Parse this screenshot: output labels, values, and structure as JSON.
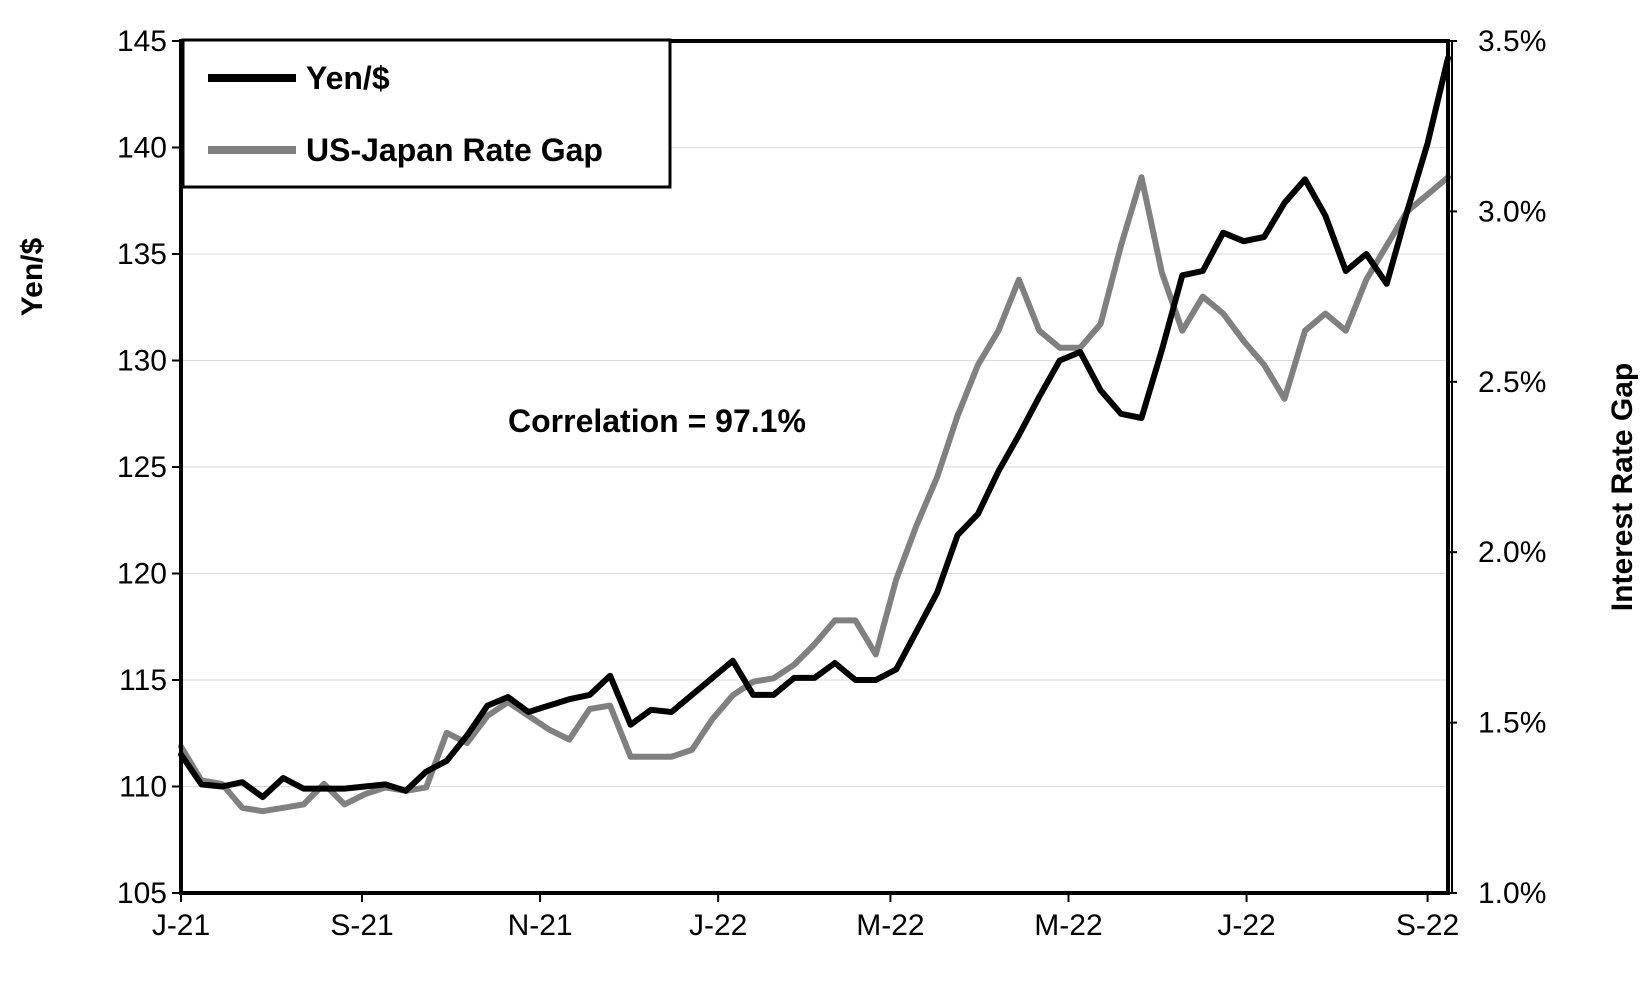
{
  "chart_data": {
    "type": "line",
    "title": "",
    "annotation": "Correlation = 97.1%",
    "xlabel": "",
    "ylabel": "Yen/$",
    "y2label": "Interest Rate Gap",
    "x_ticks": [
      "J-21",
      "S-21",
      "N-21",
      "J-22",
      "M-22",
      "M-22",
      "J-22",
      "S-22"
    ],
    "x_tick_dates": [
      "2021-07-01",
      "2021-09-01",
      "2021-11-01",
      "2022-01-01",
      "2022-03-01",
      "2022-05-01",
      "2022-07-01",
      "2022-09-01"
    ],
    "x_range": [
      "2021-07-01",
      "2022-09-08"
    ],
    "ylim": [
      105,
      145
    ],
    "y_ticks": [
      "105",
      "110",
      "115",
      "120",
      "125",
      "130",
      "135",
      "140",
      "145"
    ],
    "y2lim": [
      1.0,
      3.5
    ],
    "y2_ticks": [
      "1.0%",
      "1.5%",
      "2.0%",
      "2.5%",
      "3.0%",
      "3.5%"
    ],
    "grid": "horizontal",
    "legend": "top-left",
    "x": [
      "2021-07-01",
      "2021-07-08",
      "2021-07-15",
      "2021-07-22",
      "2021-07-29",
      "2021-08-05",
      "2021-08-12",
      "2021-08-19",
      "2021-08-26",
      "2021-09-02",
      "2021-09-09",
      "2021-09-16",
      "2021-09-23",
      "2021-09-30",
      "2021-10-07",
      "2021-10-14",
      "2021-10-21",
      "2021-10-28",
      "2021-11-04",
      "2021-11-11",
      "2021-11-18",
      "2021-11-25",
      "2021-12-02",
      "2021-12-09",
      "2021-12-16",
      "2021-12-23",
      "2021-12-30",
      "2022-01-06",
      "2022-01-13",
      "2022-01-20",
      "2022-01-27",
      "2022-02-03",
      "2022-02-10",
      "2022-02-17",
      "2022-02-24",
      "2022-03-03",
      "2022-03-10",
      "2022-03-17",
      "2022-03-24",
      "2022-03-31",
      "2022-04-07",
      "2022-04-14",
      "2022-04-21",
      "2022-04-28",
      "2022-05-05",
      "2022-05-12",
      "2022-05-19",
      "2022-05-26",
      "2022-06-02",
      "2022-06-09",
      "2022-06-16",
      "2022-06-23",
      "2022-06-30",
      "2022-07-07",
      "2022-07-14",
      "2022-07-21",
      "2022-07-28",
      "2022-08-04",
      "2022-08-11",
      "2022-08-18",
      "2022-08-25",
      "2022-09-01",
      "2022-09-08"
    ],
    "series": [
      {
        "name": "Yen/$",
        "color": "#000000",
        "axis": "left",
        "values": [
          111.5,
          110.1,
          110.0,
          110.2,
          109.5,
          110.4,
          109.9,
          109.9,
          109.9,
          110.0,
          110.1,
          109.8,
          110.7,
          111.2,
          112.4,
          113.8,
          114.2,
          113.5,
          113.8,
          114.1,
          114.3,
          115.2,
          112.9,
          113.6,
          113.5,
          114.3,
          115.1,
          115.9,
          114.3,
          114.3,
          115.1,
          115.1,
          115.8,
          115.0,
          115.0,
          115.5,
          117.3,
          119.1,
          121.8,
          122.8,
          124.8,
          126.5,
          128.3,
          130.0,
          130.4,
          128.6,
          127.5,
          127.3,
          130.5,
          134.0,
          134.2,
          136.0,
          135.6,
          135.8,
          137.4,
          138.5,
          136.8,
          134.2,
          135.0,
          133.6,
          137.0,
          140.2,
          144.2
        ]
      },
      {
        "name": "US-Japan Rate Gap",
        "color": "#808080",
        "axis": "right",
        "values": [
          1.43,
          1.33,
          1.32,
          1.25,
          1.24,
          1.25,
          1.26,
          1.32,
          1.26,
          1.29,
          1.31,
          1.3,
          1.31,
          1.47,
          1.44,
          1.52,
          1.56,
          1.52,
          1.48,
          1.45,
          1.54,
          1.55,
          1.4,
          1.4,
          1.4,
          1.42,
          1.51,
          1.58,
          1.62,
          1.63,
          1.67,
          1.73,
          1.8,
          1.8,
          1.7,
          1.92,
          2.08,
          2.22,
          2.4,
          2.55,
          2.65,
          2.8,
          2.65,
          2.6,
          2.6,
          2.67,
          2.9,
          3.1,
          2.82,
          2.65,
          2.75,
          2.7,
          2.62,
          2.55,
          2.45,
          2.65,
          2.7,
          2.65,
          2.8,
          2.9,
          3.0,
          3.05,
          3.1
        ]
      }
    ]
  }
}
